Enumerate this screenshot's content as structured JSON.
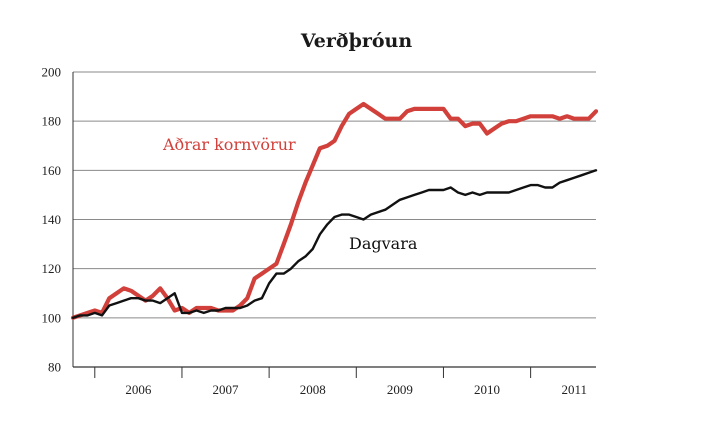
{
  "chart_data": {
    "type": "line",
    "title": "Verðþróun",
    "xlabel": "",
    "ylabel": "",
    "ylim": [
      80,
      200
    ],
    "yticks": [
      80,
      100,
      120,
      140,
      160,
      180,
      200
    ],
    "xticks": [
      "2006",
      "2007",
      "2008",
      "2009",
      "2010",
      "2011"
    ],
    "x_range": [
      2005.75,
      2011.75
    ],
    "grid": true,
    "series": [
      {
        "name": "Aðrar kornvörur",
        "color": "#d1403a",
        "x": [
          2005.75,
          2005.833,
          2005.917,
          2006.0,
          2006.083,
          2006.167,
          2006.25,
          2006.333,
          2006.417,
          2006.5,
          2006.583,
          2006.667,
          2006.75,
          2006.833,
          2006.917,
          2007.0,
          2007.083,
          2007.167,
          2007.25,
          2007.333,
          2007.417,
          2007.5,
          2007.583,
          2007.667,
          2007.75,
          2007.833,
          2007.917,
          2008.0,
          2008.083,
          2008.167,
          2008.25,
          2008.333,
          2008.417,
          2008.5,
          2008.583,
          2008.667,
          2008.75,
          2008.833,
          2008.917,
          2009.0,
          2009.083,
          2009.167,
          2009.25,
          2009.333,
          2009.417,
          2009.5,
          2009.583,
          2009.667,
          2009.75,
          2009.833,
          2009.917,
          2010.0,
          2010.083,
          2010.167,
          2010.25,
          2010.333,
          2010.417,
          2010.5,
          2010.583,
          2010.667,
          2010.75,
          2010.833,
          2010.917,
          2011.0,
          2011.083,
          2011.167,
          2011.25,
          2011.333,
          2011.417,
          2011.5,
          2011.583,
          2011.667,
          2011.75
        ],
        "values": [
          100,
          101,
          102,
          103,
          102,
          108,
          110,
          112,
          111,
          109,
          107,
          109,
          112,
          108,
          103,
          104,
          102,
          104,
          104,
          104,
          103,
          103,
          103,
          105,
          108,
          116,
          118,
          120,
          122,
          130,
          138,
          147,
          155,
          162,
          169,
          170,
          172,
          178,
          183,
          185,
          187,
          185,
          183,
          181,
          181,
          181,
          184,
          185,
          185,
          185,
          185,
          185,
          181,
          181,
          178,
          179,
          179,
          175,
          177,
          179,
          180,
          180,
          181,
          182,
          182,
          182,
          182,
          181,
          182,
          181,
          181,
          181,
          184
        ]
      },
      {
        "name": "Dagvara",
        "color": "#111111",
        "x": [
          2005.75,
          2005.833,
          2005.917,
          2006.0,
          2006.083,
          2006.167,
          2006.25,
          2006.333,
          2006.417,
          2006.5,
          2006.583,
          2006.667,
          2006.75,
          2006.833,
          2006.917,
          2007.0,
          2007.083,
          2007.167,
          2007.25,
          2007.333,
          2007.417,
          2007.5,
          2007.583,
          2007.667,
          2007.75,
          2007.833,
          2007.917,
          2008.0,
          2008.083,
          2008.167,
          2008.25,
          2008.333,
          2008.417,
          2008.5,
          2008.583,
          2008.667,
          2008.75,
          2008.833,
          2008.917,
          2009.0,
          2009.083,
          2009.167,
          2009.25,
          2009.333,
          2009.417,
          2009.5,
          2009.583,
          2009.667,
          2009.75,
          2009.833,
          2009.917,
          2010.0,
          2010.083,
          2010.167,
          2010.25,
          2010.333,
          2010.417,
          2010.5,
          2010.583,
          2010.667,
          2010.75,
          2010.833,
          2010.917,
          2011.0,
          2011.083,
          2011.167,
          2011.25,
          2011.333,
          2011.417,
          2011.5,
          2011.583,
          2011.667,
          2011.75
        ],
        "values": [
          100,
          101,
          101,
          102,
          101,
          105,
          106,
          107,
          108,
          108,
          107,
          107,
          106,
          108,
          110,
          102,
          102,
          103,
          102,
          103,
          103,
          104,
          104,
          104,
          105,
          107,
          108,
          114,
          118,
          118,
          120,
          123,
          125,
          128,
          134,
          138,
          141,
          142,
          142,
          141,
          140,
          142,
          143,
          144,
          146,
          148,
          149,
          150,
          151,
          152,
          152,
          152,
          153,
          151,
          150,
          151,
          150,
          151,
          151,
          151,
          151,
          152,
          153,
          154,
          154,
          153,
          153,
          155,
          156,
          157,
          158,
          159,
          160
        ]
      }
    ],
    "annotations": [
      {
        "text": "Aðrar kornvörur",
        "color": "#d1403a"
      },
      {
        "text": "Dagvara",
        "color": "#111111"
      }
    ]
  }
}
